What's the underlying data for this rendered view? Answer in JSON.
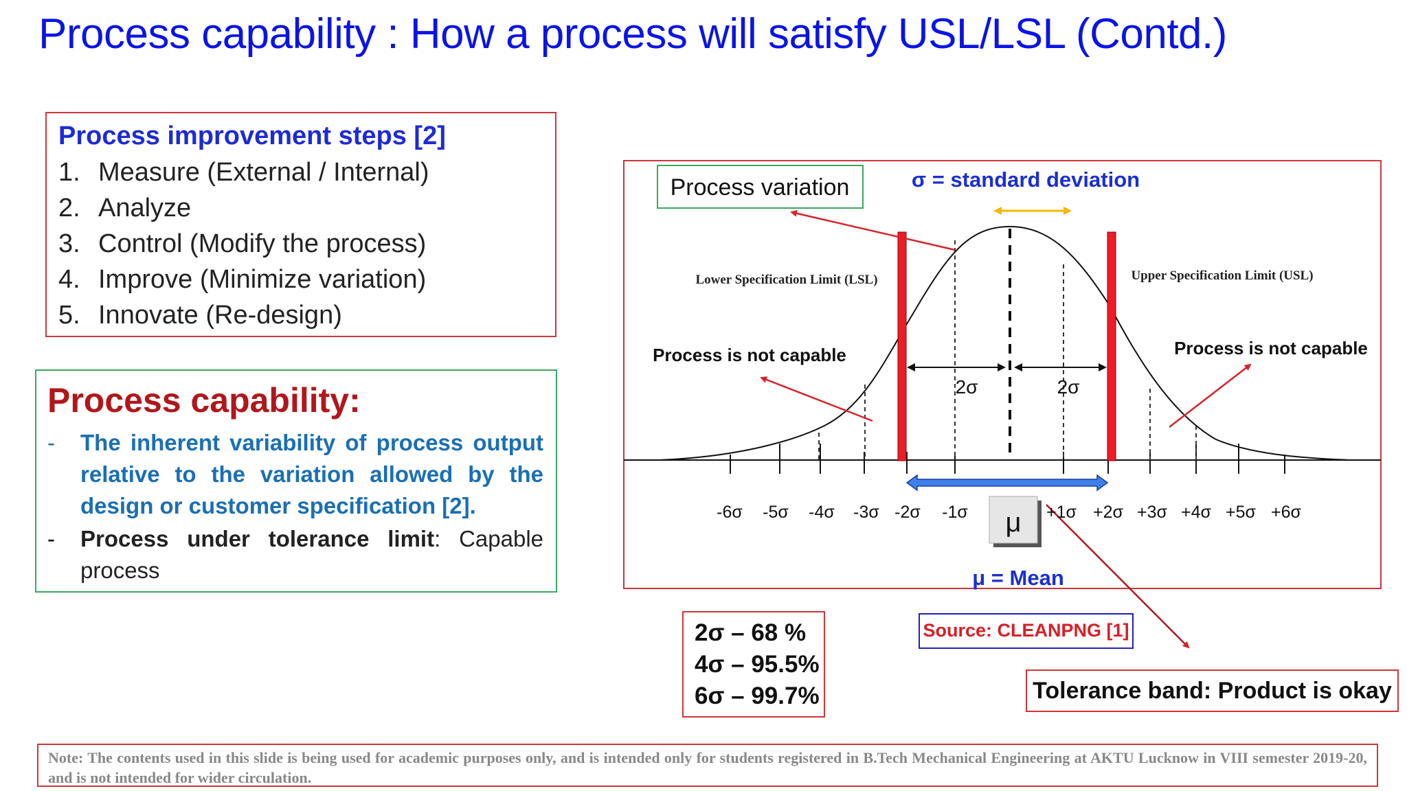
{
  "slide": {
    "title": "Process capability : How a process will satisfy USL/LSL (Contd.)"
  },
  "improvement": {
    "heading": "Process improvement steps [2]",
    "steps": [
      {
        "num": "1.",
        "label": "Measure (External / Internal)"
      },
      {
        "num": "2.",
        "label": "Analyze"
      },
      {
        "num": "3.",
        "label": "Control (Modify the process)"
      },
      {
        "num": "4.",
        "label": "Improve (Minimize variation)"
      },
      {
        "num": "5.",
        "label": "Innovate (Re-design)"
      }
    ]
  },
  "capability": {
    "heading": "Process capability:",
    "item1": "The inherent variability of process output relative to the variation allowed by the design or customer specification [2].",
    "item2_bold": "Process under tolerance limit",
    "item2_rest": ": Capable process",
    "dash": "-"
  },
  "diagram": {
    "process_variation": "Process variation",
    "sigma_def": "σ = standard deviation",
    "lsl": "Lower Specification Limit (LSL)",
    "usl": "Upper Specification Limit (USL)",
    "not_capable_left": "Process is not capable",
    "not_capable_right": "Process is not capable",
    "two_sigma_left": "2σ",
    "two_sigma_right": "2σ",
    "mu_symbol": "μ",
    "mu_def": "μ = Mean",
    "axis_labels_left": [
      "-6σ",
      "-5σ",
      "-4σ",
      "-3σ",
      "-2σ",
      "-1σ"
    ],
    "axis_labels_right": [
      "+1σ",
      "+2σ",
      "+3σ",
      "+4σ",
      "+5σ",
      "+6σ"
    ],
    "colors": {
      "limit_bar": "#ee1c25",
      "arrow_red": "#d8232a",
      "arrow_yellow": "#f5b800",
      "band_blue": "#3f7fe8",
      "text_blue": "#1c2fd1"
    }
  },
  "percentages": [
    "2σ – 68 %",
    "4σ – 95.5%",
    "6σ – 99.7%"
  ],
  "source": "Source: CLEANPNG [1]",
  "tolerance": "Tolerance band: Product is okay",
  "note": "Note: The contents used in this slide is being used for academic purposes only, and is intended only for students registered in  B.Tech Mechanical Engineering at AKTU Lucknow in VIII semester 2019-20, and is not intended for wider circulation."
}
